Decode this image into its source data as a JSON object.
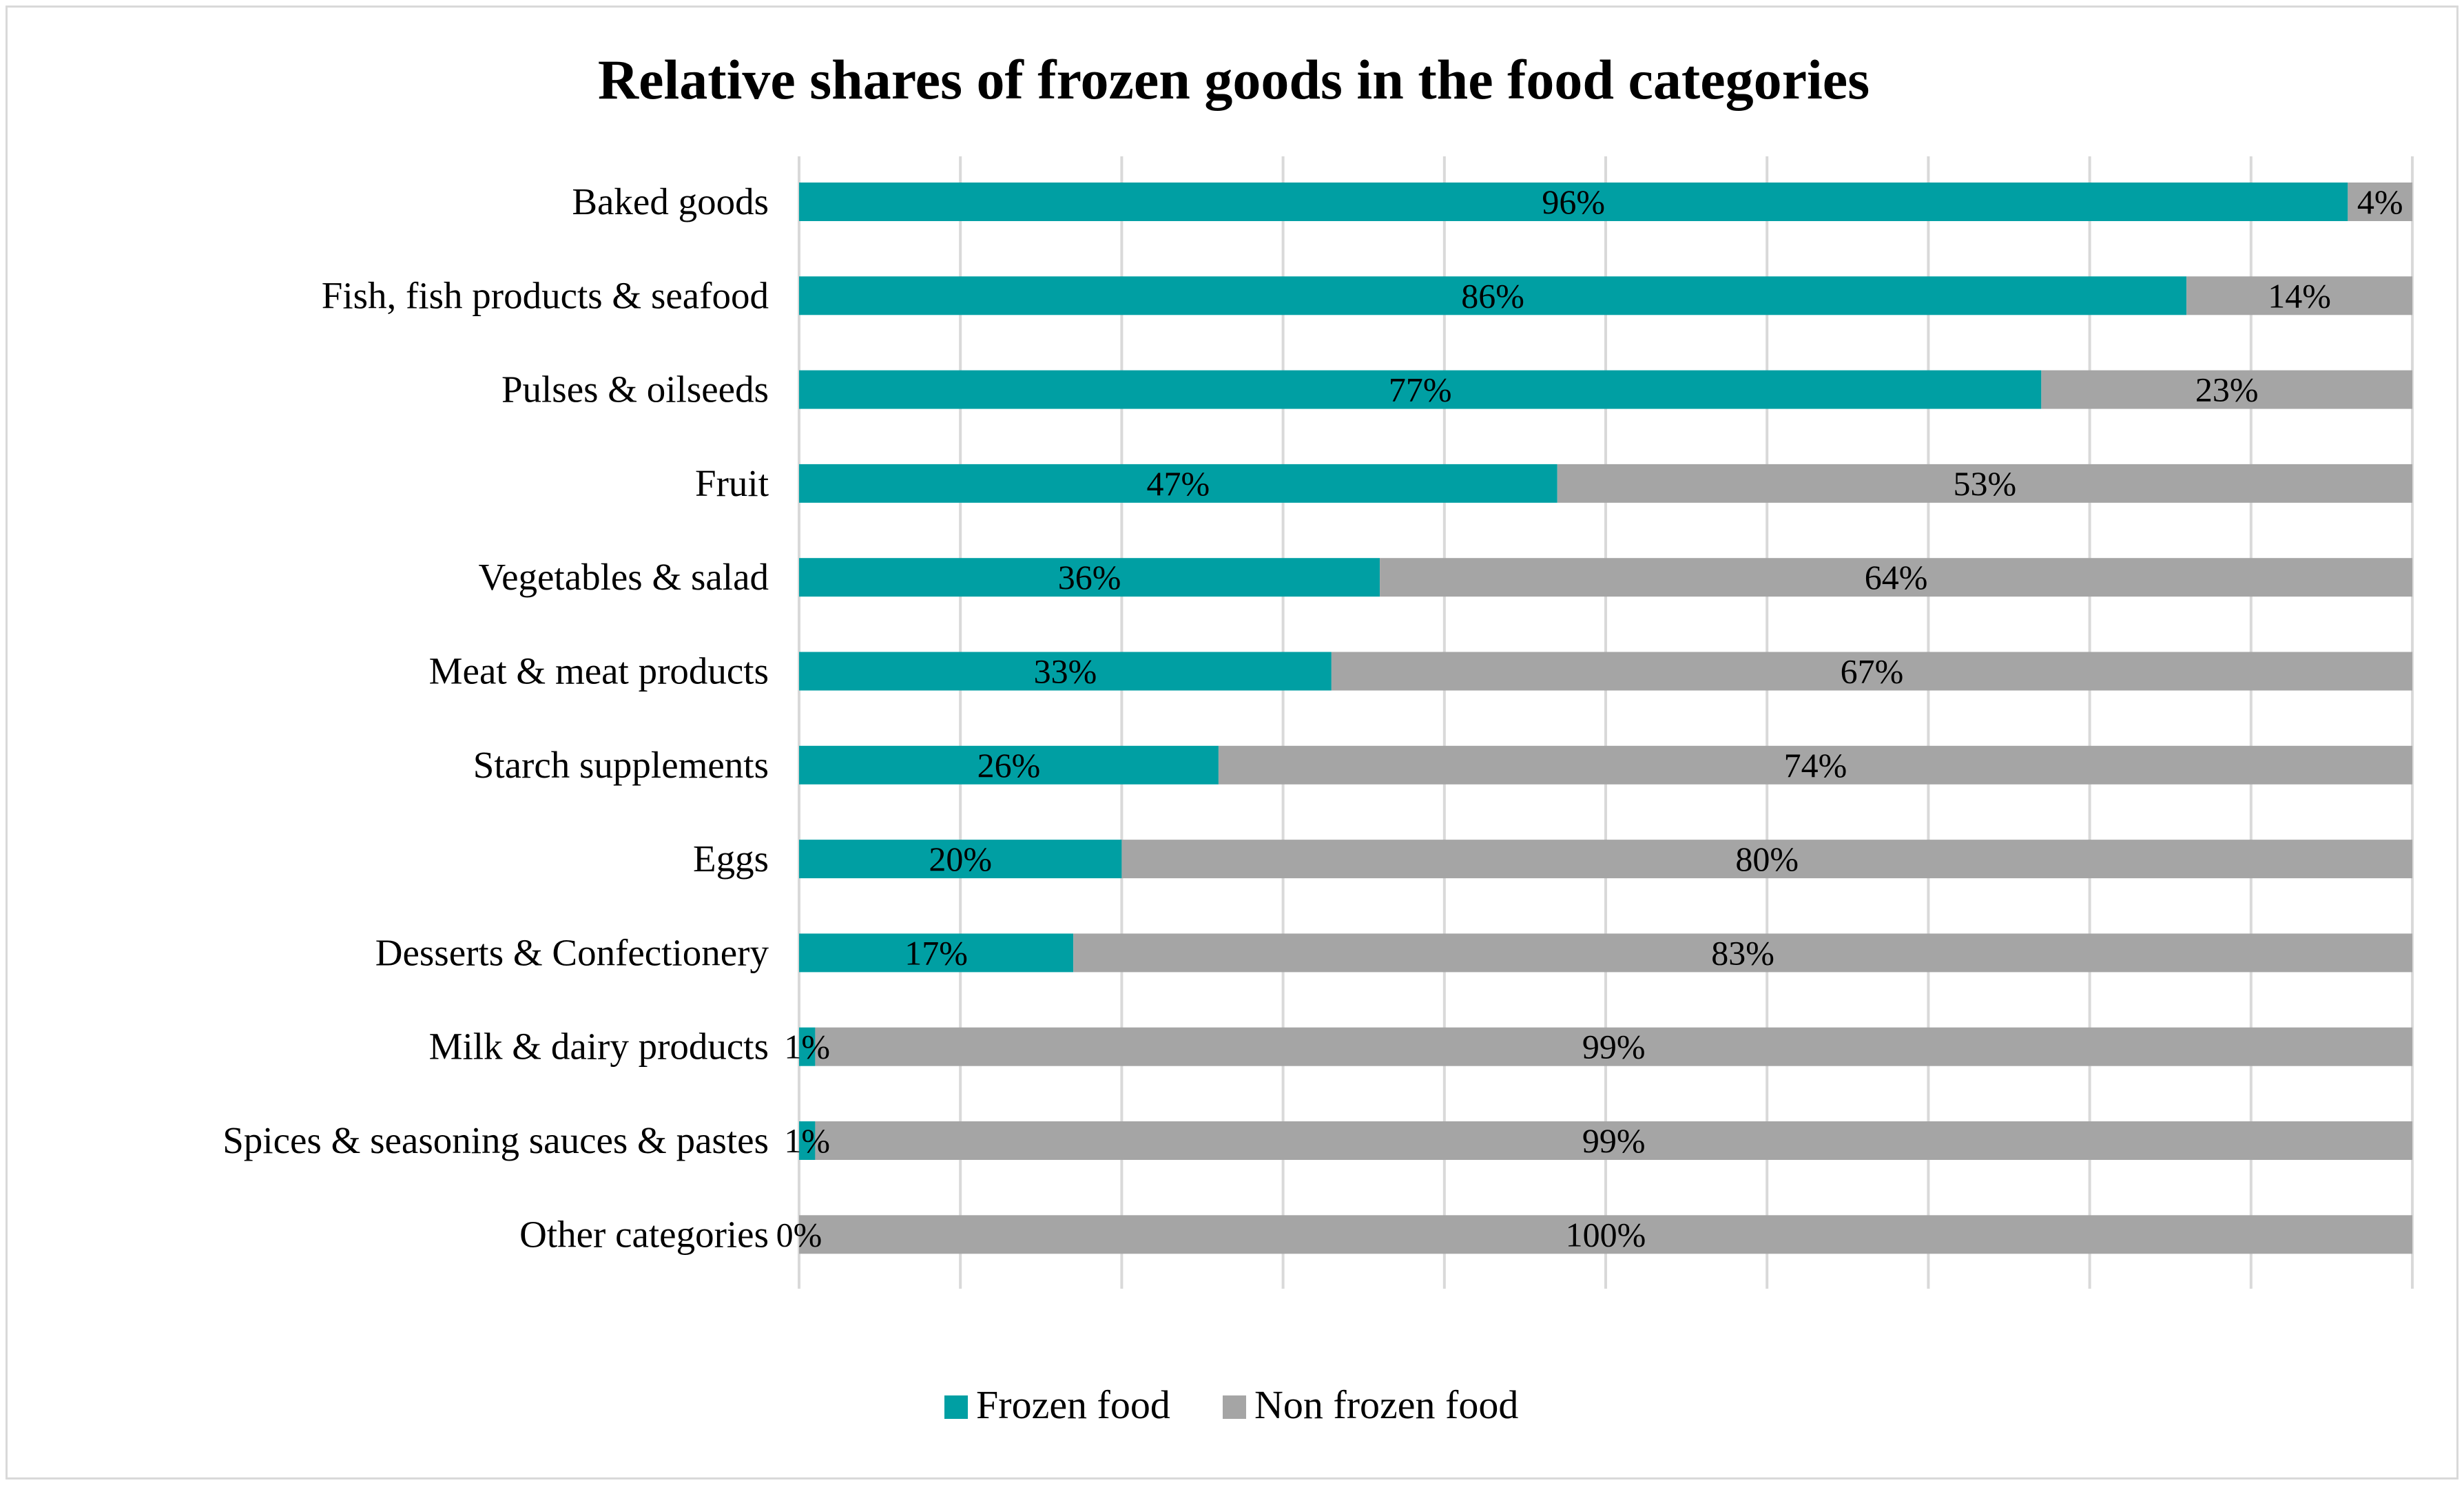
{
  "chart_data": {
    "type": "bar",
    "orientation": "horizontal",
    "stacked": "percent",
    "title": "Relative shares of frozen goods in the food categories",
    "xlabel": "",
    "ylabel": "",
    "xlim": [
      0,
      100
    ],
    "grid": true,
    "legend_position": "bottom",
    "categories": [
      "Baked goods",
      "Fish, fish products & seafood",
      "Pulses & oilseeds",
      "Fruit",
      "Vegetables & salad",
      "Meat & meat products",
      "Starch supplements",
      "Eggs",
      "Desserts & Confectionery",
      "Milk & dairy products",
      "Spices & seasoning sauces & pastes",
      "Other categories"
    ],
    "series": [
      {
        "name": "Frozen food",
        "color": "#009fa3",
        "values": [
          96,
          86,
          77,
          47,
          36,
          33,
          26,
          20,
          17,
          1,
          1,
          0
        ],
        "labels": [
          "96%",
          "86%",
          "77%",
          "47%",
          "36%",
          "33%",
          "26%",
          "20%",
          "17%",
          "1%",
          "1%",
          "0%"
        ]
      },
      {
        "name": "Non frozen food",
        "color": "#a5a5a5",
        "values": [
          4,
          14,
          23,
          53,
          64,
          67,
          74,
          80,
          83,
          99,
          99,
          100
        ],
        "labels": [
          "4%",
          "14%",
          "23%",
          "53%",
          "64%",
          "67%",
          "74%",
          "80%",
          "83%",
          "99%",
          "99%",
          "100%"
        ]
      }
    ]
  }
}
